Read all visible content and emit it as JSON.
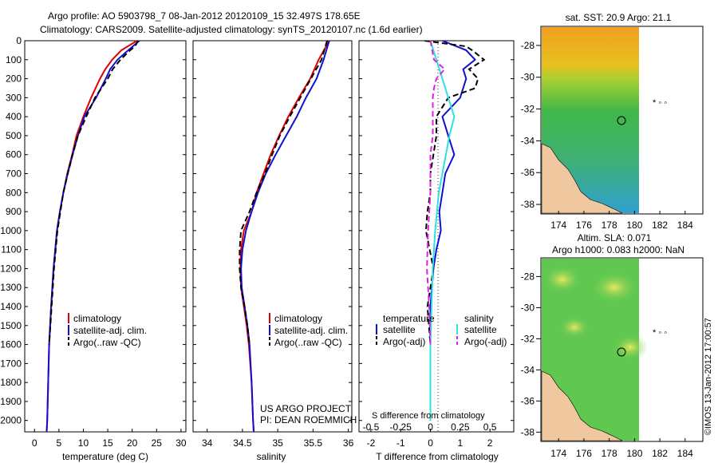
{
  "header": {
    "line1": "Argo profile: AO 5903798_7 08-Jan-2012 20120109_15 32.497S 178.65E",
    "line2": "Climatology: CARS2009. Satellite-adjusted climatology: synTS_20120107.nc (1.6d earlier)"
  },
  "colors": {
    "climatology": "#e00000",
    "satellite": "#1010d0",
    "argo": "#000000",
    "s_satellite": "#30e0e0",
    "s_argo": "#e020e0"
  },
  "legend": {
    "climatology": "climatology",
    "satellite_adj": "satellite-adj. clim.",
    "argo": "Argo(..raw -QC)",
    "temperature": "temperature",
    "salinity": "salinity",
    "satellite": "satellite",
    "argo_adj": "Argo(-adj)"
  },
  "credits": {
    "line1": "US ARGO PROJECT",
    "line2": "PI: DEAN ROEMMICH"
  },
  "diff_labels": {
    "s_title": "S difference from climatology",
    "t_title": "T difference from climatology"
  },
  "maps": {
    "sst_title": "sat. SST: 20.9 Argo: 21.1",
    "sla_title1": "Altim. SLA: 0.071",
    "sla_title2": "Argo h1000: 0.083 h2000: NaN",
    "lat_ticks": [
      "-28",
      "-30",
      "-32",
      "-34",
      "-36",
      "-38"
    ],
    "lon_ticks": [
      "174",
      "176",
      "178",
      "180",
      "182",
      "184"
    ]
  },
  "footer": {
    "imos": "©IMOS 13-Jan-2012 17:00:57"
  },
  "chart_data": [
    {
      "type": "line",
      "xlabel": "temperature (deg C)",
      "ylabel": "",
      "xlim": [
        -2,
        31
      ],
      "ylim": [
        2060,
        0
      ],
      "xticks": [
        "0",
        "5",
        "10",
        "15",
        "20",
        "25",
        "30"
      ],
      "yticks": [
        "0",
        "100",
        "200",
        "300",
        "400",
        "500",
        "600",
        "700",
        "800",
        "900",
        "1000",
        "1100",
        "1200",
        "1300",
        "1400",
        "1500",
        "1600",
        "1700",
        "1800",
        "1900",
        "2000"
      ],
      "series": [
        {
          "name": "climatology",
          "depth": [
            0,
            50,
            100,
            150,
            200,
            300,
            400,
            500,
            600,
            700,
            800,
            900,
            1000,
            1200,
            1400,
            1600,
            1800,
            2000,
            2060
          ],
          "values": [
            21.0,
            17.8,
            15.9,
            14.5,
            13.4,
            11.6,
            10.0,
            8.6,
            7.7,
            6.7,
            5.9,
            5.2,
            4.6,
            3.9,
            3.4,
            3.0,
            2.8,
            2.6,
            2.5
          ]
        },
        {
          "name": "satellite-adj. clim.",
          "depth": [
            0,
            50,
            100,
            150,
            200,
            300,
            400,
            500,
            600,
            700,
            800,
            900,
            1000,
            1200,
            1400,
            1600,
            1800,
            2000,
            2060
          ],
          "values": [
            21.5,
            19.2,
            17.0,
            15.5,
            14.6,
            12.6,
            10.2,
            8.9,
            7.8,
            6.8,
            5.9,
            5.2,
            4.6,
            3.9,
            3.4,
            3.0,
            2.8,
            2.6,
            2.5
          ]
        },
        {
          "name": "Argo(..raw -QC)",
          "depth": [
            0,
            30,
            50,
            100,
            150,
            200,
            300,
            400,
            500,
            600,
            700,
            800,
            900,
            1000,
            1200,
            1400,
            1600
          ],
          "values": [
            21.2,
            20.6,
            19.6,
            17.6,
            16.0,
            15.0,
            12.4,
            10.6,
            8.9,
            7.8,
            6.8,
            5.9,
            5.3,
            4.7,
            4.0,
            3.5,
            3.0
          ]
        }
      ]
    },
    {
      "type": "line",
      "xlabel": "salinity",
      "ylabel": "",
      "xlim": [
        33.8,
        36.05
      ],
      "ylim": [
        2060,
        0
      ],
      "xticks": [
        "34",
        "34.5",
        "35",
        "35.5",
        "36"
      ],
      "series": [
        {
          "name": "climatology",
          "depth": [
            0,
            100,
            200,
            300,
            400,
            500,
            600,
            700,
            800,
            900,
            1000,
            1100,
            1200,
            1300,
            1400,
            1500,
            1600,
            1800,
            2000,
            2060
          ],
          "values": [
            35.73,
            35.58,
            35.46,
            35.3,
            35.15,
            35.02,
            34.9,
            34.8,
            34.7,
            34.63,
            34.52,
            34.48,
            34.47,
            34.48,
            34.52,
            34.56,
            34.59,
            34.63,
            34.65,
            34.66
          ]
        },
        {
          "name": "satellite-adj. clim.",
          "depth": [
            0,
            100,
            200,
            300,
            400,
            500,
            600,
            700,
            800,
            900,
            1000,
            1100,
            1200,
            1300,
            1400,
            1500,
            1600,
            1800,
            2000,
            2060
          ],
          "values": [
            35.73,
            35.65,
            35.55,
            35.4,
            35.27,
            35.12,
            34.97,
            34.83,
            34.72,
            34.63,
            34.55,
            34.5,
            34.48,
            34.49,
            34.53,
            34.57,
            34.6,
            34.63,
            34.65,
            34.66
          ]
        },
        {
          "name": "Argo(..raw -QC)",
          "depth": [
            0,
            100,
            200,
            300,
            400,
            500,
            600,
            700,
            800,
            900,
            1000,
            1100,
            1200,
            1300,
            1400,
            1500,
            1600
          ],
          "values": [
            35.7,
            35.62,
            35.47,
            35.32,
            35.17,
            35.03,
            34.92,
            34.82,
            34.7,
            34.6,
            34.48,
            34.46,
            34.46,
            34.48,
            34.53,
            34.57,
            34.6
          ]
        }
      ]
    },
    {
      "type": "line",
      "xlabel": "T difference from climatology",
      "title": "S difference from climatology",
      "xlim": [
        -2.4,
        2.8
      ],
      "ylim": [
        2060,
        0
      ],
      "xticks": [
        "-2",
        "-1",
        "0",
        "1",
        "2"
      ],
      "secondary_xticks": [
        "-0.5",
        "-0.25",
        "0",
        "0.25",
        "0.5"
      ],
      "series": [
        {
          "name": "temperature satellite",
          "depth": [
            0,
            50,
            100,
            150,
            200,
            300,
            400,
            500,
            600,
            700,
            800,
            900,
            1000,
            1100,
            1200,
            1400,
            1600,
            1800,
            2000
          ],
          "values": [
            0.4,
            1.2,
            1.5,
            1.1,
            1.2,
            1.0,
            0.4,
            0.6,
            0.8,
            0.5,
            0.4,
            0.3,
            0.35,
            0.2,
            0.1,
            0.0,
            0.0,
            0.0,
            0.0
          ]
        },
        {
          "name": "temperature Argo(-adj)",
          "depth": [
            0,
            30,
            50,
            100,
            150,
            200,
            250,
            300,
            400,
            500,
            600,
            700,
            800,
            900,
            1000,
            1200,
            1400,
            1600
          ],
          "values": [
            -0.2,
            1.2,
            1.4,
            1.8,
            1.3,
            1.6,
            1.5,
            0.6,
            0.2,
            0.2,
            0.1,
            0.0,
            0.0,
            -0.1,
            -0.15,
            0.1,
            -0.1,
            0.0
          ]
        },
        {
          "name": "salinity satellite",
          "depth": [
            0,
            100,
            200,
            300,
            400,
            500,
            600,
            800,
            1000,
            1200,
            1400,
            1600,
            1800,
            2000
          ],
          "values": [
            0.0,
            0.05,
            0.1,
            0.15,
            0.2,
            0.16,
            0.13,
            0.07,
            0.04,
            0.02,
            0.01,
            0.0,
            0.0,
            0.0
          ]
        },
        {
          "name": "salinity Argo(-adj)",
          "depth": [
            0,
            100,
            150,
            200,
            250,
            300,
            400,
            500,
            600,
            800,
            1000,
            1200,
            1400,
            1600
          ],
          "values": [
            0.0,
            0.03,
            0.12,
            0.05,
            0.03,
            0.02,
            0.02,
            0.02,
            0.0,
            0.0,
            -0.02,
            -0.03,
            -0.01,
            0.0
          ]
        }
      ]
    }
  ]
}
